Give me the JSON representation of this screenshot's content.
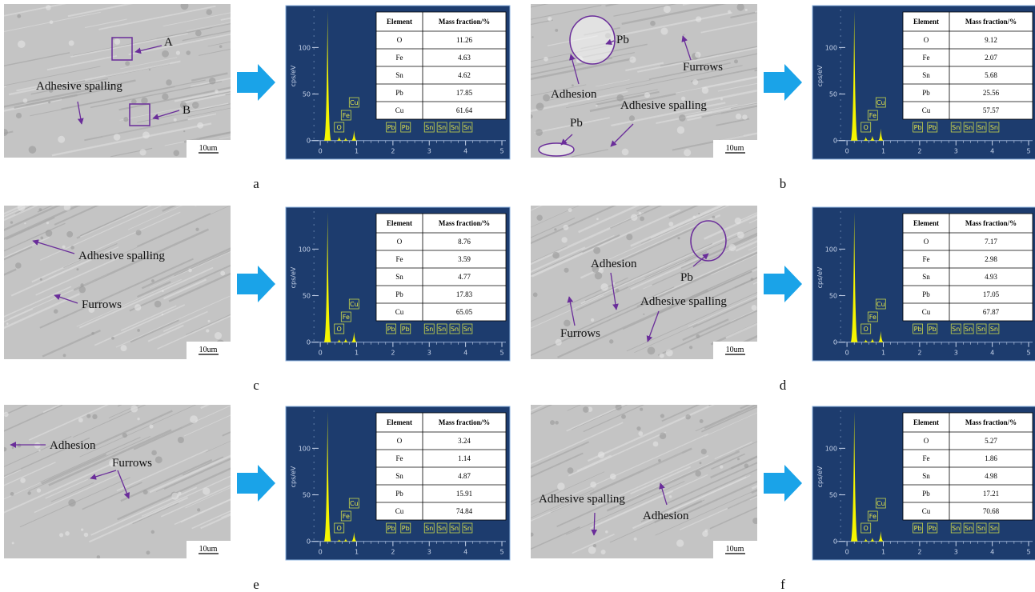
{
  "panels": [
    {
      "label": "a",
      "sem": {
        "annotations": [
          "A",
          "Adhesive spalling",
          "B"
        ],
        "scale_bar": "10um"
      },
      "spectrum": {
        "y_label": "cps/eV",
        "ylim": [
          -20,
          145
        ],
        "yticks": [
          0,
          50,
          100
        ],
        "xlim": [
          -0.95,
          5.22
        ],
        "xticks": [
          0,
          1,
          2,
          3,
          4,
          5
        ],
        "peak_labels": [
          "O",
          "Fe",
          "Cu",
          "Pb",
          "Pb",
          "Sn",
          "Sn",
          "Sn",
          "Sn"
        ],
        "peaks": {
          "x": [
            0.2,
            0.52,
            0.7,
            0.93
          ],
          "values": [
            140,
            4,
            3,
            11
          ]
        }
      },
      "table": {
        "header": [
          "Element",
          "Mass fraction/%"
        ],
        "rows": [
          [
            "O",
            11.26
          ],
          [
            "Fe",
            4.63
          ],
          [
            "Sn",
            4.62
          ],
          [
            "Pb",
            17.85
          ],
          [
            "Cu",
            61.64
          ]
        ]
      }
    },
    {
      "label": "b",
      "sem": {
        "annotations": [
          "Pb",
          "Furrows",
          "Adhesion",
          "Adhesive spalling",
          "Pb"
        ],
        "scale_bar": "10um"
      },
      "spectrum": {
        "y_label": "cps/eV",
        "ylim": [
          -20,
          145
        ],
        "yticks": [
          0,
          50,
          100
        ],
        "xlim": [
          -0.95,
          5.22
        ],
        "xticks": [
          0,
          1,
          2,
          3,
          4,
          5
        ],
        "peak_labels": [
          "O",
          "Fe",
          "Cu",
          "Pb",
          "Pb",
          "Sn",
          "Sn",
          "Sn",
          "Sn"
        ],
        "peaks": {
          "x": [
            0.2,
            0.52,
            0.7,
            0.93
          ],
          "values": [
            140,
            4,
            5,
            13
          ]
        }
      },
      "table": {
        "header": [
          "Element",
          "Mass fraction/%"
        ],
        "rows": [
          [
            "O",
            9.12
          ],
          [
            "Fe",
            2.07
          ],
          [
            "Sn",
            5.68
          ],
          [
            "Pb",
            25.56
          ],
          [
            "Cu",
            57.57
          ]
        ]
      }
    },
    {
      "label": "c",
      "sem": {
        "annotations": [
          "Adhesive spalling",
          "Furrows"
        ],
        "scale_bar": "10um"
      },
      "spectrum": {
        "y_label": "cps/eV",
        "ylim": [
          -20,
          145
        ],
        "yticks": [
          0,
          50,
          100
        ],
        "xlim": [
          -0.95,
          5.22
        ],
        "xticks": [
          0,
          1,
          2,
          3,
          4,
          5
        ],
        "peak_labels": [
          "O",
          "Fe",
          "Cu",
          "Pb",
          "Pb",
          "Sn",
          "Sn",
          "Sn",
          "Sn"
        ],
        "peaks": {
          "x": [
            0.2,
            0.52,
            0.7,
            0.93
          ],
          "values": [
            140,
            3,
            4,
            11
          ]
        }
      },
      "table": {
        "header": [
          "Element",
          "Mass fraction/%"
        ],
        "rows": [
          [
            "O",
            8.76
          ],
          [
            "Fe",
            3.59
          ],
          [
            "Sn",
            4.77
          ],
          [
            "Pb",
            17.83
          ],
          [
            "Cu",
            65.05
          ]
        ]
      }
    },
    {
      "label": "d",
      "sem": {
        "annotations": [
          "Pb",
          "Adhesion",
          "Adhesive spalling",
          "Furrows"
        ],
        "scale_bar": "10um"
      },
      "spectrum": {
        "y_label": "cps/eV",
        "ylim": [
          -20,
          145
        ],
        "yticks": [
          0,
          50,
          100
        ],
        "xlim": [
          -0.95,
          5.22
        ],
        "xticks": [
          0,
          1,
          2,
          3,
          4,
          5
        ],
        "peak_labels": [
          "O",
          "Fe",
          "Cu",
          "Pb",
          "Pb",
          "Sn",
          "Sn",
          "Sn",
          "Sn"
        ],
        "peaks": {
          "x": [
            0.2,
            0.52,
            0.7,
            0.93
          ],
          "values": [
            140,
            3,
            4,
            12
          ]
        }
      },
      "table": {
        "header": [
          "Element",
          "Mass fraction/%"
        ],
        "rows": [
          [
            "O",
            7.17
          ],
          [
            "Fe",
            2.98
          ],
          [
            "Sn",
            4.93
          ],
          [
            "Pb",
            17.05
          ],
          [
            "Cu",
            67.87
          ]
        ]
      }
    },
    {
      "label": "e",
      "sem": {
        "annotations": [
          "Adhesion",
          "Furrows"
        ],
        "scale_bar": "10um"
      },
      "spectrum": {
        "y_label": "cps/eV",
        "ylim": [
          -20,
          145
        ],
        "yticks": [
          0,
          50,
          100
        ],
        "xlim": [
          -0.95,
          5.22
        ],
        "xticks": [
          0,
          1,
          2,
          3,
          4,
          5
        ],
        "peak_labels": [
          "O",
          "Fe",
          "Cu",
          "Pb",
          "Pb",
          "Sn",
          "Sn",
          "Sn",
          "Sn"
        ],
        "peaks": {
          "x": [
            0.2,
            0.52,
            0.7,
            0.93
          ],
          "values": [
            140,
            2,
            3,
            10
          ]
        }
      },
      "table": {
        "header": [
          "Element",
          "Mass fraction/%"
        ],
        "rows": [
          [
            "O",
            3.24
          ],
          [
            "Fe",
            1.14
          ],
          [
            "Sn",
            4.87
          ],
          [
            "Pb",
            15.91
          ],
          [
            "Cu",
            74.84
          ]
        ]
      }
    },
    {
      "label": "f",
      "sem": {
        "annotations": [
          "Adhesive spalling",
          "Adhesion"
        ],
        "scale_bar": "10um"
      },
      "spectrum": {
        "y_label": "cps/eV",
        "ylim": [
          -20,
          145
        ],
        "yticks": [
          0,
          50,
          100
        ],
        "xlim": [
          -0.95,
          5.22
        ],
        "xticks": [
          0,
          1,
          2,
          3,
          4,
          5
        ],
        "peak_labels": [
          "O",
          "Fe",
          "Cu",
          "Pb",
          "Pb",
          "Sn",
          "Sn",
          "Sn",
          "Sn"
        ],
        "peaks": {
          "x": [
            0.2,
            0.52,
            0.7,
            0.93
          ],
          "values": [
            140,
            3,
            4,
            11
          ]
        }
      },
      "table": {
        "header": [
          "Element",
          "Mass fraction/%"
        ],
        "rows": [
          [
            "O",
            5.27
          ],
          [
            "Fe",
            1.86
          ],
          [
            "Sn",
            4.98
          ],
          [
            "Pb",
            17.21
          ],
          [
            "Cu",
            70.68
          ]
        ]
      }
    }
  ]
}
